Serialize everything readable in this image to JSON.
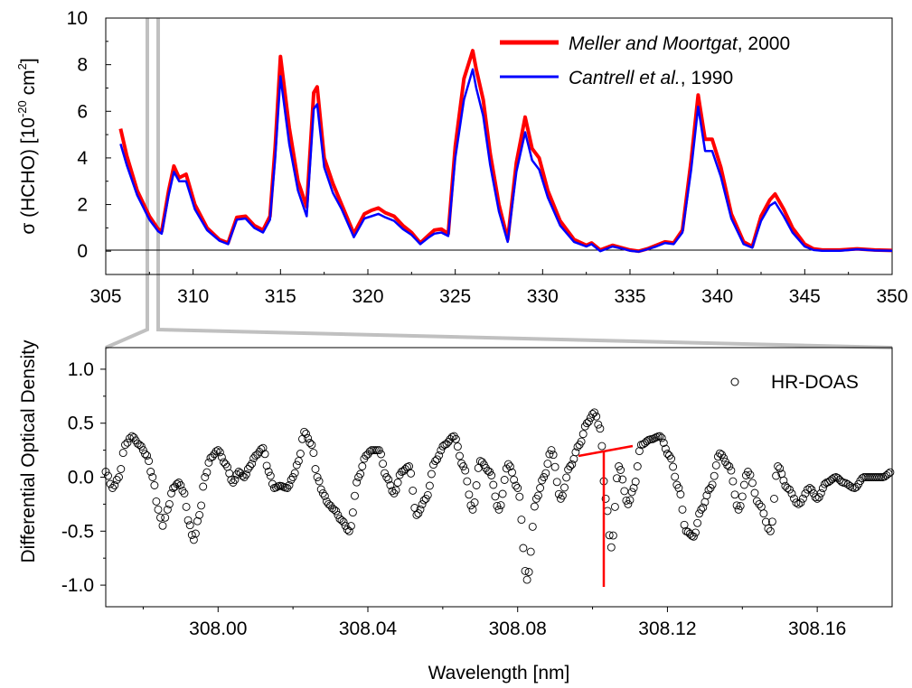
{
  "chart_data": [
    {
      "type": "line",
      "xlim": [
        305,
        350
      ],
      "ylim": [
        -1,
        10
      ],
      "xticks": [
        "305",
        "310",
        "315",
        "320",
        "325",
        "330",
        "335",
        "340",
        "345",
        "350"
      ],
      "yticks": [
        "0",
        "2",
        "4",
        "6",
        "8",
        "10"
      ],
      "ylabel": {
        "prefix": "σ (HCHO) [10",
        "sup1": "-20",
        "mid": " cm",
        "sup2": "2",
        "suffix": "]"
      },
      "legend_position": "top-right",
      "series": [
        {
          "name_italic": "Meller and Moortgat",
          "name_rest": ", 2000",
          "color": "#ff0000",
          "x": [
            305.85,
            306.2,
            306.8,
            307.5,
            308.0,
            308.2,
            308.6,
            308.9,
            309.2,
            309.6,
            310.1,
            310.8,
            311.5,
            312.0,
            312.5,
            313.0,
            313.5,
            314.0,
            314.4,
            314.7,
            315.0,
            315.5,
            316.0,
            316.5,
            316.9,
            317.1,
            317.5,
            318.0,
            318.5,
            319.2,
            319.8,
            320.2,
            320.6,
            321.0,
            321.5,
            322.0,
            322.5,
            323.0,
            323.5,
            323.8,
            324.2,
            324.6,
            325.0,
            325.5,
            326.0,
            326.2,
            326.6,
            327.0,
            327.5,
            328.0,
            328.5,
            329.0,
            329.4,
            329.8,
            330.3,
            331.0,
            331.8,
            332.5,
            332.8,
            333.3,
            334.0,
            334.5,
            335.0,
            335.5,
            336.0,
            336.5,
            337.0,
            337.5,
            338.0,
            338.5,
            338.9,
            339.3,
            339.7,
            340.2,
            340.8,
            341.5,
            342.0,
            342.5,
            343.0,
            343.3,
            343.8,
            344.3,
            345.0,
            345.5,
            346.0,
            347.0,
            348.0,
            349.0,
            350.0
          ],
          "y": [
            5.25,
            4.1,
            2.6,
            1.5,
            0.95,
            0.85,
            2.6,
            3.65,
            3.15,
            3.3,
            2.0,
            1.0,
            0.5,
            0.35,
            1.45,
            1.5,
            1.1,
            0.9,
            1.5,
            4.5,
            8.35,
            5.3,
            3.0,
            1.9,
            6.8,
            7.05,
            4.0,
            2.9,
            2.0,
            0.75,
            1.6,
            1.75,
            1.85,
            1.65,
            1.5,
            1.1,
            0.8,
            0.35,
            0.7,
            0.9,
            0.95,
            0.75,
            4.5,
            7.4,
            8.6,
            7.8,
            6.5,
            4.2,
            2.0,
            0.5,
            3.8,
            5.75,
            4.4,
            4.0,
            2.6,
            1.3,
            0.5,
            0.25,
            0.35,
            0.05,
            0.25,
            0.15,
            0.05,
            0.0,
            0.1,
            0.25,
            0.4,
            0.35,
            0.9,
            3.9,
            6.7,
            4.8,
            4.8,
            3.6,
            1.6,
            0.4,
            0.2,
            1.5,
            2.2,
            2.45,
            1.8,
            1.0,
            0.3,
            0.1,
            0.05,
            0.05,
            0.1,
            0.05,
            0.03
          ]
        },
        {
          "name_italic": "Cantrell et al.",
          "name_rest": ", 1990",
          "color": "#0000ff",
          "x": [
            305.85,
            306.2,
            306.8,
            307.5,
            308.0,
            308.2,
            308.6,
            308.9,
            309.2,
            309.6,
            310.1,
            310.8,
            311.5,
            312.0,
            312.5,
            313.0,
            313.5,
            314.0,
            314.4,
            314.7,
            315.0,
            315.5,
            316.0,
            316.5,
            316.9,
            317.1,
            317.5,
            318.0,
            318.5,
            319.2,
            319.8,
            320.2,
            320.6,
            321.0,
            321.5,
            322.0,
            322.5,
            323.0,
            323.5,
            323.8,
            324.2,
            324.6,
            325.0,
            325.5,
            326.0,
            326.2,
            326.6,
            327.0,
            327.5,
            328.0,
            328.5,
            329.0,
            329.4,
            329.8,
            330.3,
            331.0,
            331.8,
            332.5,
            332.8,
            333.3,
            334.0,
            334.5,
            335.0,
            335.5,
            336.0,
            336.5,
            337.0,
            337.5,
            338.0,
            338.5,
            338.9,
            339.3,
            339.7,
            340.2,
            340.8,
            341.5,
            342.0,
            342.5,
            343.0,
            343.3,
            343.8,
            344.3,
            345.0,
            345.5,
            346.0,
            347.0,
            348.0,
            349.0,
            350.0
          ],
          "y": [
            4.6,
            3.7,
            2.4,
            1.35,
            0.85,
            0.75,
            2.4,
            3.4,
            3.0,
            3.0,
            1.8,
            0.9,
            0.45,
            0.3,
            1.35,
            1.4,
            1.0,
            0.8,
            1.35,
            4.0,
            7.5,
            4.6,
            2.6,
            1.5,
            6.1,
            6.3,
            3.6,
            2.5,
            1.8,
            0.6,
            1.4,
            1.5,
            1.6,
            1.45,
            1.3,
            0.95,
            0.7,
            0.3,
            0.6,
            0.75,
            0.8,
            0.65,
            4.0,
            6.5,
            7.8,
            7.0,
            5.8,
            3.7,
            1.7,
            0.4,
            3.4,
            5.1,
            3.9,
            3.5,
            2.3,
            1.1,
            0.4,
            0.2,
            0.3,
            0.0,
            0.2,
            0.12,
            0.02,
            -0.02,
            0.08,
            0.2,
            0.35,
            0.3,
            0.8,
            3.5,
            6.2,
            4.3,
            4.3,
            3.2,
            1.4,
            0.3,
            0.15,
            1.3,
            1.95,
            2.1,
            1.5,
            0.8,
            0.2,
            0.05,
            0.02,
            0.02,
            0.08,
            0.03,
            0.02
          ]
        }
      ]
    },
    {
      "type": "scatter",
      "xlabel": "Wavelength [nm]",
      "ylabel": "Differential Optical Density",
      "xlim": [
        307.97,
        308.18
      ],
      "ylim": [
        -1.2,
        1.2
      ],
      "xticks": [
        "308.00",
        "308.04",
        "308.08",
        "308.12",
        "308.16"
      ],
      "yticks": [
        "1.0",
        "0.5",
        "0.0",
        "-0.5",
        "-1.0"
      ],
      "legend_position": "top-right",
      "series": [
        {
          "name": "HR-DOAS",
          "marker": "open-circle",
          "x": [
            307.97,
            307.9718,
            307.9735,
            307.9752,
            307.977,
            307.979,
            307.981,
            307.9825,
            307.984,
            307.9852,
            307.9865,
            307.988,
            307.9895,
            307.991,
            307.992,
            307.9935,
            307.995,
            307.9965,
            307.998,
            308.0,
            308.002,
            308.004,
            308.0055,
            308.007,
            308.0085,
            308.01,
            308.012,
            308.0135,
            308.015,
            308.0165,
            308.0185,
            308.02,
            308.0215,
            308.023,
            308.025,
            308.0265,
            308.028,
            308.0295,
            308.031,
            308.033,
            308.035,
            308.0375,
            308.0395,
            308.041,
            308.043,
            308.045,
            308.047,
            308.049,
            308.051,
            308.053,
            308.0555,
            308.058,
            308.0605,
            308.063,
            308.0655,
            308.068,
            308.07,
            308.0725,
            308.075,
            308.0775,
            308.08,
            308.0825,
            308.085,
            308.087,
            308.089,
            308.0915,
            308.094,
            308.0965,
            308.0985,
            308.1005,
            308.102,
            308.1035,
            308.105,
            308.107,
            308.1095,
            308.111,
            308.113,
            308.1155,
            308.118,
            308.1205,
            308.123,
            308.125,
            308.127,
            308.129,
            308.1315,
            308.134,
            308.1365,
            308.139,
            308.1415,
            308.1445,
            308.1475,
            308.1495,
            308.152,
            308.155,
            308.158,
            308.16,
            308.1625,
            308.165,
            308.167,
            308.17,
            308.1725,
            308.175,
            308.1775,
            308.18
          ],
          "y": [
            0.05,
            -0.1,
            0.0,
            0.3,
            0.38,
            0.3,
            0.2,
            0.0,
            -0.3,
            -0.45,
            -0.3,
            -0.1,
            -0.05,
            -0.15,
            -0.4,
            -0.58,
            -0.35,
            0.0,
            0.18,
            0.25,
            0.12,
            -0.05,
            0.05,
            0.0,
            0.1,
            0.2,
            0.27,
            0.05,
            -0.1,
            -0.08,
            -0.1,
            0.0,
            0.15,
            0.42,
            0.3,
            0.0,
            -0.15,
            -0.25,
            -0.3,
            -0.4,
            -0.5,
            0.0,
            0.2,
            0.25,
            0.25,
            0.0,
            -0.15,
            0.05,
            0.1,
            -0.35,
            -0.2,
            0.15,
            0.3,
            0.38,
            0.1,
            -0.3,
            0.15,
            0.05,
            -0.3,
            0.12,
            -0.1,
            -0.95,
            -0.2,
            0.0,
            0.25,
            -0.2,
            0.1,
            0.3,
            0.5,
            0.6,
            0.45,
            -0.2,
            -0.65,
            0.1,
            -0.25,
            -0.1,
            0.3,
            0.35,
            0.38,
            0.2,
            -0.1,
            -0.5,
            -0.55,
            -0.3,
            -0.1,
            0.22,
            0.1,
            -0.3,
            0.05,
            -0.25,
            -0.5,
            0.1,
            -0.1,
            -0.25,
            -0.1,
            -0.2,
            -0.05,
            0.0,
            -0.05,
            -0.1,
            0.0,
            0.0,
            0.0,
            0.05
          ]
        }
      ]
    }
  ]
}
